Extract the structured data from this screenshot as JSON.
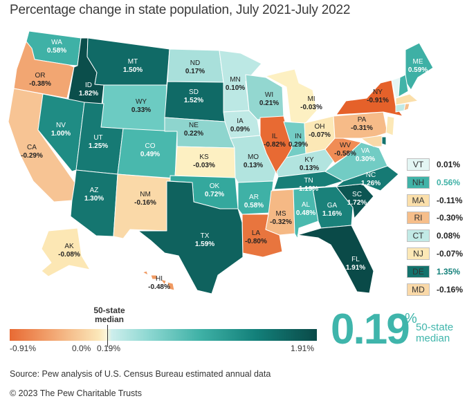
{
  "title": "Percentage change in state population, July 2021-July 2022",
  "colors": {
    "deep_orange": "#e86a33",
    "orange": "#f2a672",
    "light_orange": "#fbd7ae",
    "cream": "#fdf0c2",
    "light_teal": "#a9e0db",
    "teal": "#6ccbc2",
    "mid_teal": "#3fb1a6",
    "dark_teal": "#13807a",
    "darkest_teal": "#0b4e4b"
  },
  "states": [
    {
      "abbr": "WA",
      "value": "0.58%",
      "color": "#3fb1a6"
    },
    {
      "abbr": "OR",
      "value": "-0.38%",
      "color": "#f2a672"
    },
    {
      "abbr": "CA",
      "value": "-0.29%",
      "color": "#f7c494"
    },
    {
      "abbr": "ID",
      "value": "1.82%",
      "color": "#0b4e4b"
    },
    {
      "abbr": "NV",
      "value": "1.00%",
      "color": "#1f8c84"
    },
    {
      "abbr": "MT",
      "value": "1.50%",
      "color": "#106a66"
    },
    {
      "abbr": "WY",
      "value": "0.33%",
      "color": "#6ccbc2"
    },
    {
      "abbr": "UT",
      "value": "1.25%",
      "color": "#167a74"
    },
    {
      "abbr": "AZ",
      "value": "1.30%",
      "color": "#157670"
    },
    {
      "abbr": "CO",
      "value": "0.49%",
      "color": "#49b8ad"
    },
    {
      "abbr": "NM",
      "value": "-0.16%",
      "color": "#fad9a8"
    },
    {
      "abbr": "ND",
      "value": "0.17%",
      "color": "#a9e0db"
    },
    {
      "abbr": "SD",
      "value": "1.52%",
      "color": "#106a66"
    },
    {
      "abbr": "NE",
      "value": "0.22%",
      "color": "#8ed5ce"
    },
    {
      "abbr": "KS",
      "value": "-0.03%",
      "color": "#fdf0c2"
    },
    {
      "abbr": "OK",
      "value": "0.72%",
      "color": "#34a89d"
    },
    {
      "abbr": "TX",
      "value": "1.59%",
      "color": "#0f625e"
    },
    {
      "abbr": "MN",
      "value": "0.10%",
      "color": "#bce8e4"
    },
    {
      "abbr": "IA",
      "value": "0.09%",
      "color": "#bfe9e5"
    },
    {
      "abbr": "MO",
      "value": "0.13%",
      "color": "#b2e4df"
    },
    {
      "abbr": "AR",
      "value": "0.58%",
      "color": "#3fb1a6"
    },
    {
      "abbr": "LA",
      "value": "-0.80%",
      "color": "#e8753e"
    },
    {
      "abbr": "WI",
      "value": "0.21%",
      "color": "#93d7d0"
    },
    {
      "abbr": "IL",
      "value": "-0.82%",
      "color": "#e86a33"
    },
    {
      "abbr": "MI",
      "value": "-0.03%",
      "color": "#fdf0c2"
    },
    {
      "abbr": "IN",
      "value": "0.29%",
      "color": "#74cdc5"
    },
    {
      "abbr": "OH",
      "value": "-0.07%",
      "color": "#fce8b6"
    },
    {
      "abbr": "KY",
      "value": "0.13%",
      "color": "#b2e4df"
    },
    {
      "abbr": "TN",
      "value": "1.19%",
      "color": "#187e77"
    },
    {
      "abbr": "MS",
      "value": "-0.32%",
      "color": "#f5b985"
    },
    {
      "abbr": "AL",
      "value": "0.48%",
      "color": "#4ab9ae"
    },
    {
      "abbr": "GA",
      "value": "1.16%",
      "color": "#1a817a"
    },
    {
      "abbr": "FL",
      "value": "1.91%",
      "color": "#0a4a48"
    },
    {
      "abbr": "SC",
      "value": "1.72%",
      "color": "#0c5552"
    },
    {
      "abbr": "NC",
      "value": "1.26%",
      "color": "#167a74"
    },
    {
      "abbr": "VA",
      "value": "0.30%",
      "color": "#72ccc4"
    },
    {
      "abbr": "WV",
      "value": "-0.58%",
      "color": "#f08c55"
    },
    {
      "abbr": "PA",
      "value": "-0.31%",
      "color": "#f6bb88"
    },
    {
      "abbr": "NY",
      "value": "-0.91%",
      "color": "#e5612a"
    },
    {
      "abbr": "ME",
      "value": "0.59%",
      "color": "#3eb0a5"
    },
    {
      "abbr": "AK",
      "value": "-0.08%",
      "color": "#fce7b4"
    },
    {
      "abbr": "HI",
      "value": "-0.48%",
      "color": "#f09a62"
    }
  ],
  "small_states": [
    {
      "abbr": "VT",
      "value": "0.01%",
      "color": "#e4f6f4",
      "value_color": "#222222"
    },
    {
      "abbr": "NH",
      "value": "0.56%",
      "color": "#41b3a8",
      "value_color": "#3fb1a6"
    },
    {
      "abbr": "MA",
      "value": "-0.11%",
      "color": "#fbdfaa",
      "value_color": "#222222"
    },
    {
      "abbr": "RI",
      "value": "-0.30%",
      "color": "#f6be8a",
      "value_color": "#222222"
    },
    {
      "abbr": "CT",
      "value": "0.08%",
      "color": "#c2eae6",
      "value_color": "#222222"
    },
    {
      "abbr": "NJ",
      "value": "-0.07%",
      "color": "#fce8b6",
      "value_color": "#222222"
    },
    {
      "abbr": "DE",
      "value": "1.35%",
      "color": "#14736d",
      "value_color": "#13807a"
    },
    {
      "abbr": "MD",
      "value": "-0.16%",
      "color": "#fad9a8",
      "value_color": "#222222"
    }
  ],
  "legend": {
    "min_label": "-0.91%",
    "zero_label": "0.0%",
    "median_tick_label": "0.19%",
    "max_label": "1.91%",
    "median_caption": "50-state median",
    "min": -0.91,
    "zero": 0.0,
    "median": 0.19,
    "max": 1.91
  },
  "big_median": {
    "number": "0.19",
    "percent_sign": "%",
    "caption_line1": "50-state",
    "caption_line2": "median"
  },
  "source": "Source: Pew analysis of U.S. Census Bureau estimated annual data",
  "copyright": "© 2023 The Pew Charitable Trusts"
}
